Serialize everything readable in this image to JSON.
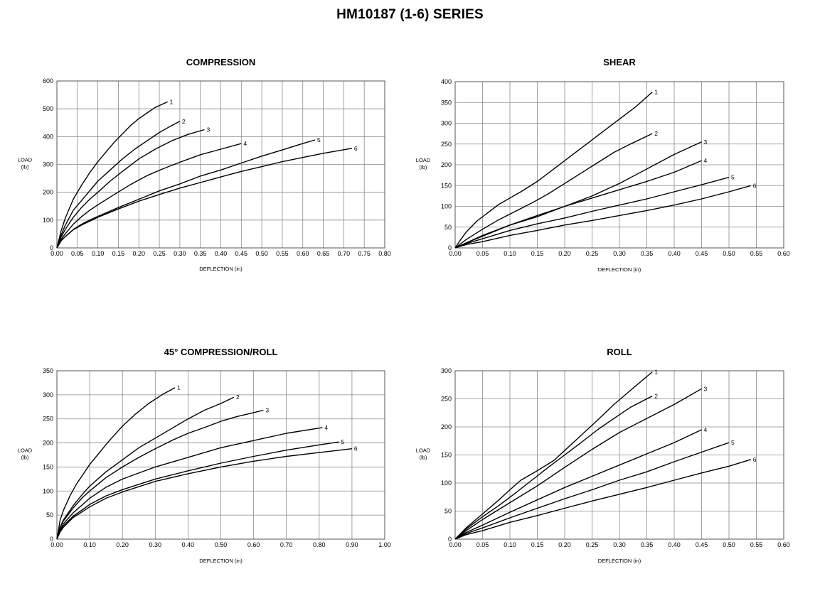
{
  "page_title": "HM10187 (1-6) SERIES",
  "chart_data": [
    {
      "type": "line",
      "title": "COMPRESSION",
      "xlabel": "DEFLECTION (in)",
      "ylabel": [
        "LOAD",
        "(lb)"
      ],
      "xlim": [
        0,
        0.8
      ],
      "ylim": [
        0,
        600
      ],
      "xticks": [
        "0.00",
        "0.05",
        "0.10",
        "0.15",
        "0.20",
        "0.25",
        "0.30",
        "0.35",
        "0.40",
        "0.45",
        "0.50",
        "0.55",
        "0.60",
        "0.65",
        "0.70",
        "0.75",
        "0.80"
      ],
      "yticks": [
        "0",
        "100",
        "200",
        "300",
        "400",
        "500",
        "600"
      ],
      "grid": true,
      "series": [
        {
          "name": "1",
          "x": [
            0,
            0.01,
            0.02,
            0.04,
            0.06,
            0.08,
            0.1,
            0.12,
            0.14,
            0.16,
            0.18,
            0.2,
            0.22,
            0.24,
            0.27
          ],
          "y": [
            0,
            60,
            105,
            175,
            225,
            270,
            310,
            345,
            380,
            410,
            440,
            465,
            485,
            505,
            525
          ]
        },
        {
          "name": "2",
          "x": [
            0,
            0.01,
            0.02,
            0.04,
            0.06,
            0.08,
            0.1,
            0.13,
            0.16,
            0.19,
            0.22,
            0.25,
            0.28,
            0.3
          ],
          "y": [
            0,
            45,
            80,
            135,
            170,
            205,
            240,
            280,
            320,
            355,
            385,
            415,
            440,
            455
          ]
        },
        {
          "name": "3",
          "x": [
            0,
            0.01,
            0.02,
            0.04,
            0.06,
            0.08,
            0.1,
            0.13,
            0.16,
            0.2,
            0.24,
            0.28,
            0.32,
            0.36
          ],
          "y": [
            0,
            38,
            65,
            110,
            145,
            175,
            200,
            240,
            275,
            320,
            355,
            385,
            408,
            425
          ]
        },
        {
          "name": "4",
          "x": [
            0,
            0.01,
            0.02,
            0.04,
            0.06,
            0.08,
            0.1,
            0.14,
            0.18,
            0.22,
            0.26,
            0.3,
            0.35,
            0.4,
            0.45
          ],
          "y": [
            0,
            30,
            50,
            85,
            112,
            135,
            155,
            192,
            228,
            260,
            285,
            308,
            335,
            355,
            375
          ]
        },
        {
          "name": "5",
          "x": [
            0,
            0.01,
            0.02,
            0.04,
            0.06,
            0.08,
            0.1,
            0.15,
            0.2,
            0.25,
            0.3,
            0.35,
            0.4,
            0.45,
            0.5,
            0.55,
            0.6,
            0.63
          ],
          "y": [
            0,
            25,
            40,
            66,
            85,
            100,
            113,
            145,
            175,
            205,
            230,
            258,
            280,
            305,
            330,
            352,
            375,
            388
          ]
        },
        {
          "name": "6",
          "x": [
            0,
            0.01,
            0.02,
            0.04,
            0.06,
            0.08,
            0.1,
            0.15,
            0.2,
            0.25,
            0.3,
            0.35,
            0.4,
            0.45,
            0.5,
            0.55,
            0.6,
            0.65,
            0.72
          ],
          "y": [
            0,
            25,
            40,
            65,
            82,
            96,
            110,
            140,
            168,
            192,
            215,
            235,
            255,
            275,
            292,
            310,
            325,
            340,
            358
          ]
        }
      ]
    },
    {
      "type": "line",
      "title": "SHEAR",
      "xlabel": "DEFLECTION (in)",
      "ylabel": [
        "LOAD",
        "(lb)"
      ],
      "xlim": [
        0,
        0.6
      ],
      "ylim": [
        0,
        400
      ],
      "xticks": [
        "0.00",
        "0.05",
        "0.10",
        "0.15",
        "0.20",
        "0.25",
        "0.30",
        "0.35",
        "0.40",
        "0.45",
        "0.50",
        "0.55",
        "0.60"
      ],
      "yticks": [
        "0",
        "50",
        "100",
        "150",
        "200",
        "250",
        "300",
        "350",
        "400"
      ],
      "grid": true,
      "series": [
        {
          "name": "1",
          "x": [
            0,
            0.01,
            0.02,
            0.04,
            0.06,
            0.08,
            0.1,
            0.12,
            0.15,
            0.18,
            0.21,
            0.24,
            0.27,
            0.3,
            0.33,
            0.36
          ],
          "y": [
            0,
            20,
            38,
            65,
            85,
            105,
            120,
            135,
            160,
            190,
            220,
            250,
            280,
            310,
            340,
            375
          ]
        },
        {
          "name": "2",
          "x": [
            0,
            0.02,
            0.05,
            0.08,
            0.11,
            0.14,
            0.17,
            0.2,
            0.23,
            0.26,
            0.29,
            0.32,
            0.36
          ],
          "y": [
            0,
            20,
            45,
            68,
            88,
            108,
            130,
            155,
            180,
            205,
            230,
            250,
            275
          ]
        },
        {
          "name": "3",
          "x": [
            0,
            0.02,
            0.05,
            0.1,
            0.15,
            0.2,
            0.25,
            0.3,
            0.35,
            0.4,
            0.45
          ],
          "y": [
            0,
            12,
            30,
            55,
            75,
            100,
            125,
            155,
            190,
            225,
            255
          ]
        },
        {
          "name": "4",
          "x": [
            0,
            0.02,
            0.05,
            0.1,
            0.15,
            0.2,
            0.25,
            0.3,
            0.35,
            0.4,
            0.45
          ],
          "y": [
            0,
            12,
            28,
            55,
            78,
            100,
            120,
            140,
            160,
            182,
            210
          ]
        },
        {
          "name": "5",
          "x": [
            0,
            0.02,
            0.05,
            0.1,
            0.15,
            0.2,
            0.25,
            0.3,
            0.35,
            0.4,
            0.45,
            0.5
          ],
          "y": [
            0,
            10,
            22,
            42,
            58,
            72,
            88,
            103,
            118,
            135,
            152,
            170
          ]
        },
        {
          "name": "6",
          "x": [
            0,
            0.02,
            0.05,
            0.1,
            0.15,
            0.2,
            0.25,
            0.3,
            0.35,
            0.4,
            0.45,
            0.5,
            0.54
          ],
          "y": [
            0,
            8,
            15,
            30,
            42,
            55,
            66,
            78,
            90,
            103,
            118,
            135,
            150
          ]
        }
      ]
    },
    {
      "type": "line",
      "title": "45° COMPRESSION/ROLL",
      "xlabel": "DEFLECTION (in)",
      "ylabel": [
        "LOAD",
        "(lb)"
      ],
      "xlim": [
        0,
        1.0
      ],
      "ylim": [
        0,
        350
      ],
      "xticks": [
        "0.00",
        "0.10",
        "0.20",
        "0.30",
        "0.40",
        "0.50",
        "0.60",
        "0.70",
        "0.80",
        "0.90",
        "1.00"
      ],
      "yticks": [
        "0",
        "50",
        "100",
        "150",
        "200",
        "250",
        "300",
        "350"
      ],
      "grid": true,
      "series": [
        {
          "name": "1",
          "x": [
            0,
            0.01,
            0.02,
            0.04,
            0.06,
            0.08,
            0.1,
            0.13,
            0.16,
            0.2,
            0.24,
            0.28,
            0.32,
            0.36
          ],
          "y": [
            0,
            40,
            60,
            90,
            115,
            135,
            155,
            180,
            205,
            235,
            260,
            282,
            300,
            315
          ]
        },
        {
          "name": "2",
          "x": [
            0,
            0.01,
            0.02,
            0.05,
            0.08,
            0.1,
            0.15,
            0.2,
            0.25,
            0.3,
            0.35,
            0.4,
            0.45,
            0.5,
            0.54
          ],
          "y": [
            0,
            25,
            40,
            70,
            95,
            110,
            140,
            165,
            190,
            210,
            230,
            250,
            268,
            282,
            295
          ]
        },
        {
          "name": "3",
          "x": [
            0,
            0.01,
            0.02,
            0.05,
            0.08,
            0.1,
            0.15,
            0.2,
            0.25,
            0.3,
            0.35,
            0.4,
            0.45,
            0.5,
            0.55,
            0.6,
            0.63
          ],
          "y": [
            0,
            25,
            38,
            65,
            88,
            100,
            128,
            150,
            170,
            188,
            205,
            220,
            232,
            245,
            255,
            263,
            268
          ]
        },
        {
          "name": "4",
          "x": [
            0,
            0.01,
            0.02,
            0.05,
            0.08,
            0.1,
            0.15,
            0.2,
            0.3,
            0.4,
            0.5,
            0.6,
            0.7,
            0.81
          ],
          "y": [
            0,
            20,
            32,
            55,
            73,
            85,
            108,
            125,
            150,
            170,
            190,
            205,
            220,
            232
          ]
        },
        {
          "name": "5",
          "x": [
            0,
            0.01,
            0.02,
            0.05,
            0.08,
            0.1,
            0.15,
            0.2,
            0.3,
            0.4,
            0.5,
            0.6,
            0.7,
            0.8,
            0.86
          ],
          "y": [
            0,
            18,
            28,
            48,
            62,
            72,
            90,
            103,
            125,
            142,
            158,
            172,
            185,
            196,
            202
          ]
        },
        {
          "name": "6",
          "x": [
            0,
            0.01,
            0.02,
            0.05,
            0.08,
            0.1,
            0.15,
            0.2,
            0.3,
            0.4,
            0.5,
            0.6,
            0.7,
            0.8,
            0.9
          ],
          "y": [
            0,
            15,
            25,
            45,
            58,
            67,
            85,
            98,
            120,
            136,
            150,
            162,
            172,
            180,
            188
          ]
        }
      ]
    },
    {
      "type": "line",
      "title": "ROLL",
      "xlabel": "DEFLECTION (in)",
      "ylabel": [
        "LOAD",
        "(lb)"
      ],
      "xlim": [
        0,
        0.6
      ],
      "ylim": [
        0,
        300
      ],
      "xticks": [
        "0.00",
        "0.05",
        "0.10",
        "0.15",
        "0.20",
        "0.25",
        "0.30",
        "0.35",
        "0.40",
        "0.45",
        "0.50",
        "0.55",
        "0.60"
      ],
      "yticks": [
        "0",
        "50",
        "100",
        "150",
        "200",
        "250",
        "300"
      ],
      "grid": true,
      "series": [
        {
          "name": "1",
          "x": [
            0,
            0.02,
            0.05,
            0.08,
            0.1,
            0.12,
            0.15,
            0.18,
            0.2,
            0.23,
            0.26,
            0.29,
            0.32,
            0.36
          ],
          "y": [
            0,
            20,
            45,
            70,
            88,
            105,
            122,
            140,
            158,
            185,
            212,
            240,
            265,
            298
          ]
        },
        {
          "name": "2",
          "x": [
            0,
            0.02,
            0.05,
            0.08,
            0.11,
            0.14,
            0.17,
            0.2,
            0.23,
            0.26,
            0.29,
            0.32,
            0.36
          ],
          "y": [
            0,
            18,
            40,
            60,
            82,
            105,
            128,
            150,
            172,
            195,
            215,
            235,
            255
          ]
        },
        {
          "name": "3",
          "x": [
            0,
            0.02,
            0.05,
            0.1,
            0.15,
            0.2,
            0.25,
            0.3,
            0.35,
            0.4,
            0.45
          ],
          "y": [
            0,
            15,
            35,
            65,
            95,
            128,
            160,
            190,
            215,
            240,
            268
          ]
        },
        {
          "name": "4",
          "x": [
            0,
            0.02,
            0.05,
            0.1,
            0.15,
            0.2,
            0.25,
            0.3,
            0.35,
            0.4,
            0.45
          ],
          "y": [
            0,
            12,
            25,
            48,
            70,
            92,
            112,
            132,
            152,
            172,
            195
          ]
        },
        {
          "name": "5",
          "x": [
            0,
            0.02,
            0.05,
            0.1,
            0.15,
            0.2,
            0.25,
            0.3,
            0.35,
            0.4,
            0.45,
            0.5
          ],
          "y": [
            0,
            10,
            20,
            38,
            55,
            72,
            88,
            105,
            120,
            138,
            155,
            172
          ]
        },
        {
          "name": "6",
          "x": [
            0,
            0.02,
            0.05,
            0.1,
            0.15,
            0.2,
            0.25,
            0.3,
            0.35,
            0.4,
            0.45,
            0.5,
            0.54
          ],
          "y": [
            0,
            8,
            15,
            30,
            42,
            55,
            68,
            80,
            92,
            105,
            118,
            130,
            142
          ]
        }
      ]
    }
  ]
}
